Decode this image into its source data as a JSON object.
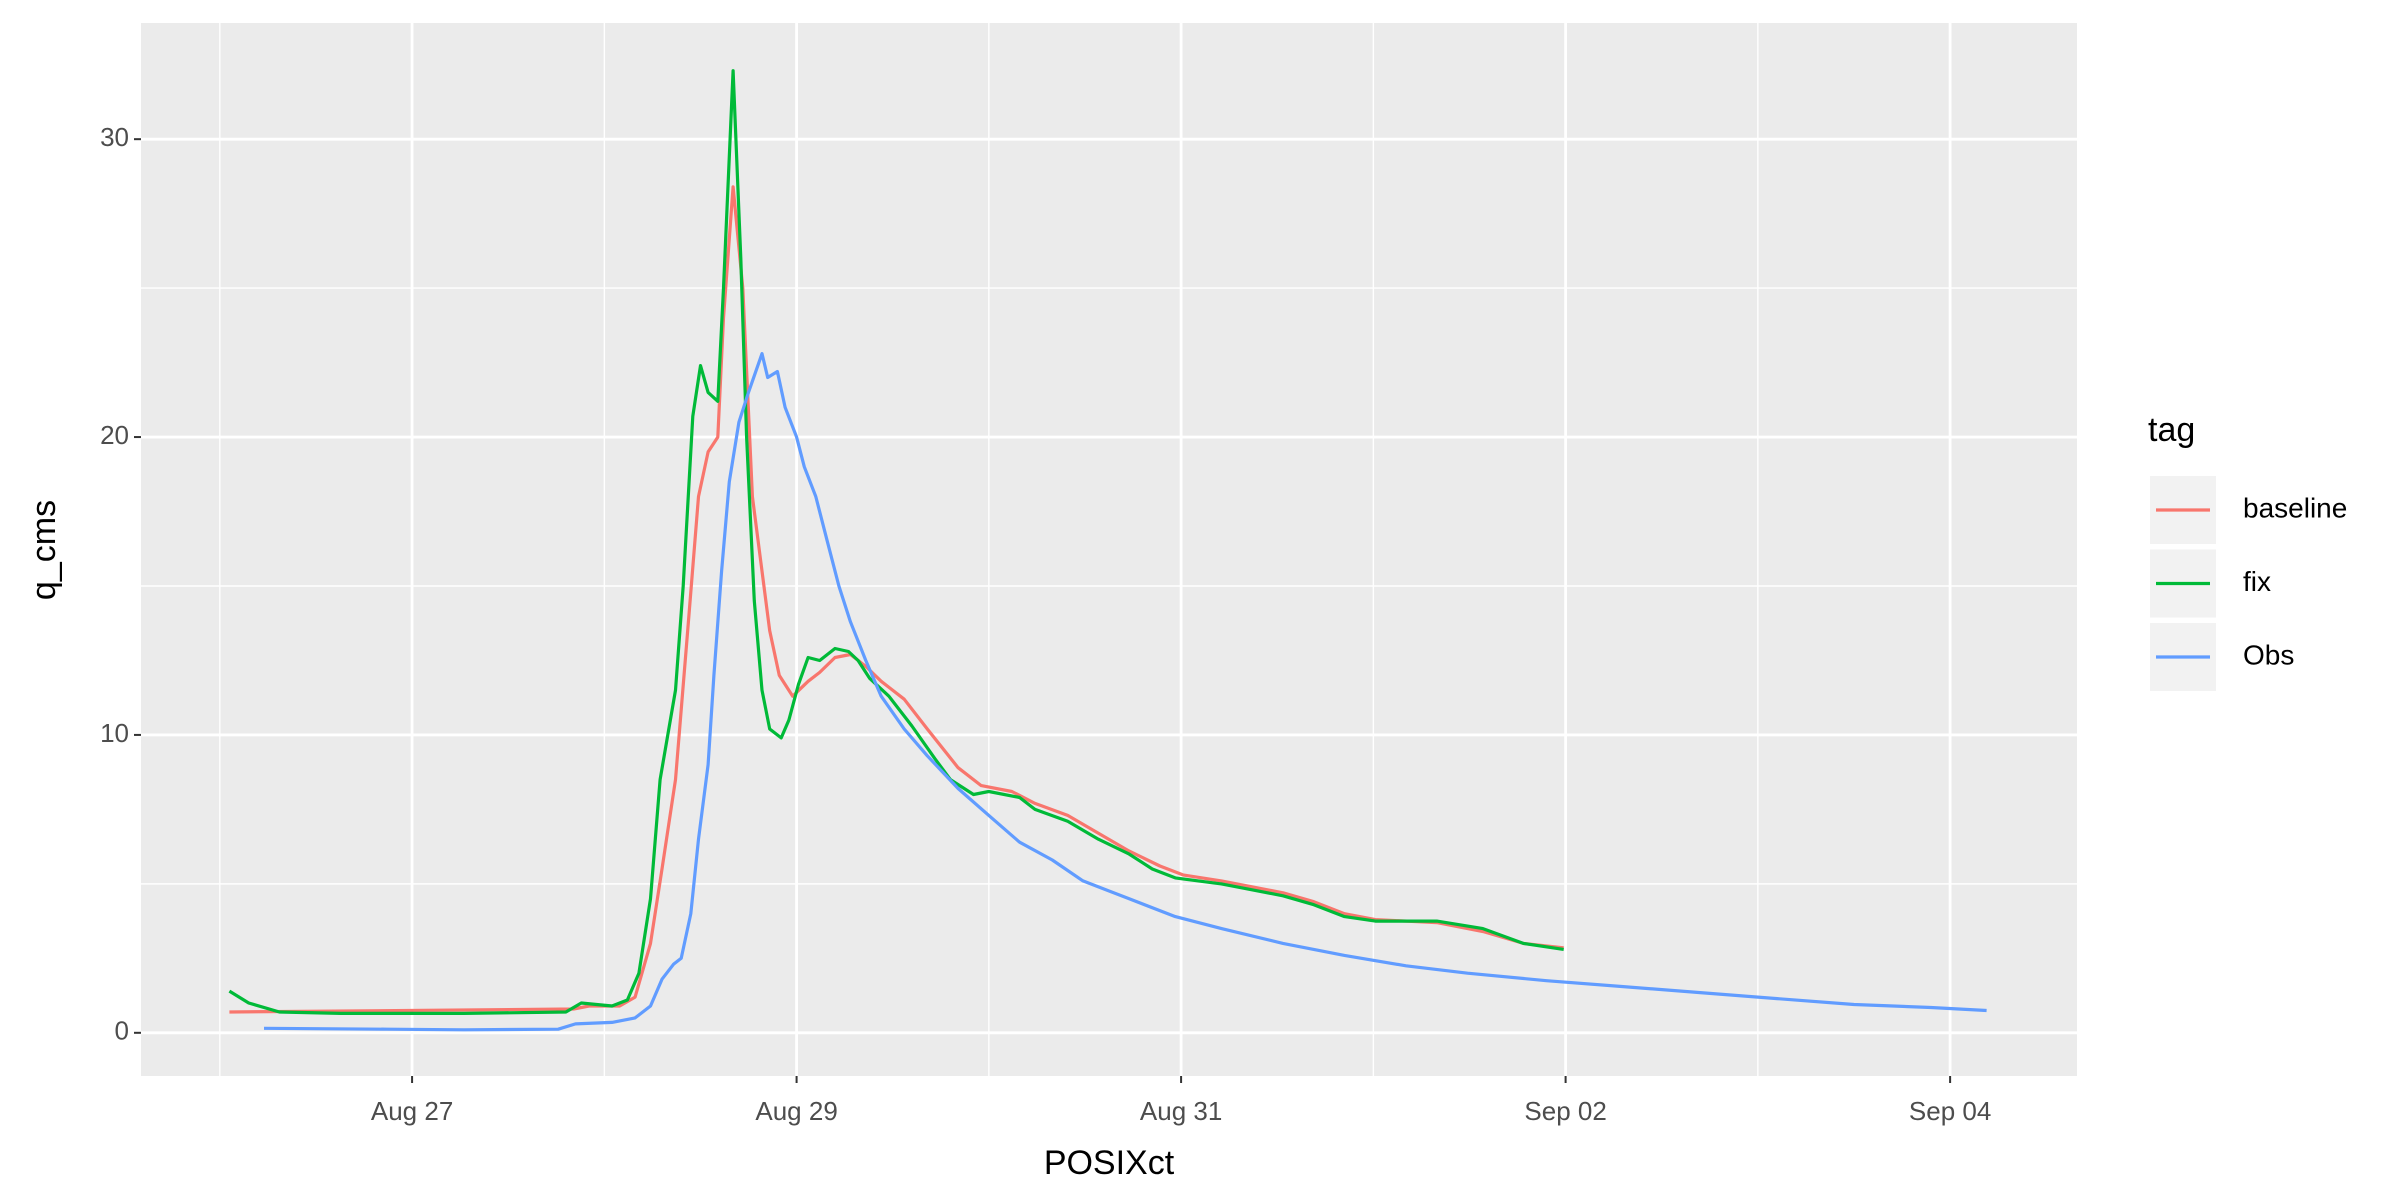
{
  "chart_data": {
    "type": "line",
    "x_label": "POSIXct",
    "y_label": "q_cms",
    "legend_title": "tag",
    "legend": "right",
    "grid": true,
    "xlim": [
      25.59,
      35.66
    ],
    "ylim": [
      -1.45,
      33.9
    ],
    "xticks": [
      {
        "value": 27,
        "label": "Aug 27"
      },
      {
        "value": 29,
        "label": "Aug 29"
      },
      {
        "value": 31,
        "label": "Aug 31"
      },
      {
        "value": 33,
        "label": "Sep 02"
      },
      {
        "value": 35,
        "label": "Sep 04"
      }
    ],
    "yticks": [
      0,
      10,
      20,
      30
    ],
    "series": [
      {
        "name": "baseline",
        "color": "#F8766D",
        "x": [
          26.05,
          27.84,
          27.92,
          28.08,
          28.16,
          28.24,
          28.3,
          28.37,
          28.44,
          28.49,
          28.54,
          28.59,
          28.62,
          28.67,
          28.72,
          28.77,
          28.82,
          28.86,
          28.91,
          28.98,
          29.06,
          29.12,
          29.2,
          29.28,
          29.36,
          29.44,
          29.56,
          29.68,
          29.84,
          29.96,
          30.12,
          30.24,
          30.41,
          30.57,
          30.73,
          30.89,
          31.01,
          31.21,
          31.53,
          31.69,
          31.85,
          32.01,
          32.33,
          32.57,
          32.78,
          32.99
        ],
        "values": [
          0.7,
          0.8,
          0.9,
          0.9,
          1.2,
          3,
          5.5,
          8.5,
          14,
          18,
          19.5,
          20,
          24,
          28.4,
          25,
          18,
          15.5,
          13.5,
          12,
          11.3,
          11.8,
          12.1,
          12.6,
          12.7,
          12.3,
          11.8,
          11.2,
          10.2,
          8.9,
          8.3,
          8.1,
          7.7,
          7.3,
          6.7,
          6.1,
          5.6,
          5.3,
          5.1,
          4.7,
          4.4,
          4.0,
          3.8,
          3.7,
          3.4,
          3.0,
          2.85
        ]
      },
      {
        "name": "fix",
        "color": "#00BA38",
        "x": [
          26.05,
          26.15,
          26.31,
          26.63,
          27.27,
          27.8,
          27.88,
          28.04,
          28.12,
          28.18,
          28.24,
          28.29,
          28.37,
          28.41,
          28.46,
          28.5,
          28.54,
          28.59,
          28.62,
          28.67,
          28.71,
          28.74,
          28.78,
          28.82,
          28.86,
          28.92,
          28.96,
          29.01,
          29.06,
          29.12,
          29.2,
          29.27,
          29.32,
          29.38,
          29.48,
          29.6,
          29.72,
          29.8,
          29.92,
          30.0,
          30.16,
          30.24,
          30.41,
          30.57,
          30.73,
          30.85,
          30.97,
          31.21,
          31.53,
          31.69,
          31.85,
          32.01,
          32.33,
          32.57,
          32.78,
          32.99
        ],
        "values": [
          1.4,
          1.0,
          0.7,
          0.65,
          0.65,
          0.7,
          1.0,
          0.9,
          1.1,
          2,
          4.5,
          8.5,
          11.5,
          15,
          20.7,
          22.4,
          21.5,
          21.2,
          25,
          32.3,
          26,
          20,
          14.5,
          11.5,
          10.2,
          9.9,
          10.5,
          11.7,
          12.6,
          12.5,
          12.9,
          12.8,
          12.5,
          11.9,
          11.3,
          10.3,
          9.2,
          8.5,
          8.0,
          8.1,
          7.9,
          7.5,
          7.1,
          6.5,
          6.0,
          5.5,
          5.2,
          5.0,
          4.6,
          4.3,
          3.9,
          3.75,
          3.75,
          3.5,
          3.0,
          2.8
        ]
      },
      {
        "name": "Obs",
        "color": "#619CFF",
        "x": [
          26.23,
          26.87,
          27.27,
          27.76,
          27.85,
          28.04,
          28.16,
          28.24,
          28.3,
          28.36,
          28.4,
          28.45,
          28.49,
          28.54,
          28.57,
          28.61,
          28.65,
          28.7,
          28.75,
          28.82,
          28.85,
          28.9,
          28.94,
          29.0,
          29.04,
          29.1,
          29.16,
          29.22,
          29.28,
          29.36,
          29.44,
          29.56,
          29.68,
          29.84,
          30.0,
          30.16,
          30.33,
          30.49,
          30.73,
          30.97,
          31.21,
          31.53,
          31.85,
          32.17,
          32.49,
          32.9,
          33.3,
          33.7,
          34.1,
          34.5,
          34.9,
          35.19
        ],
        "values": [
          0.15,
          0.12,
          0.1,
          0.12,
          0.3,
          0.35,
          0.5,
          0.9,
          1.8,
          2.3,
          2.5,
          4,
          6.5,
          9,
          12,
          15.5,
          18.5,
          20.5,
          21.5,
          22.8,
          22,
          22.2,
          21,
          20,
          19,
          18,
          16.5,
          15,
          13.8,
          12.5,
          11.3,
          10.2,
          9.3,
          8.2,
          7.3,
          6.4,
          5.8,
          5.1,
          4.5,
          3.9,
          3.5,
          3.0,
          2.6,
          2.25,
          2.0,
          1.75,
          1.55,
          1.35,
          1.15,
          0.95,
          0.85,
          0.75
        ]
      }
    ]
  }
}
